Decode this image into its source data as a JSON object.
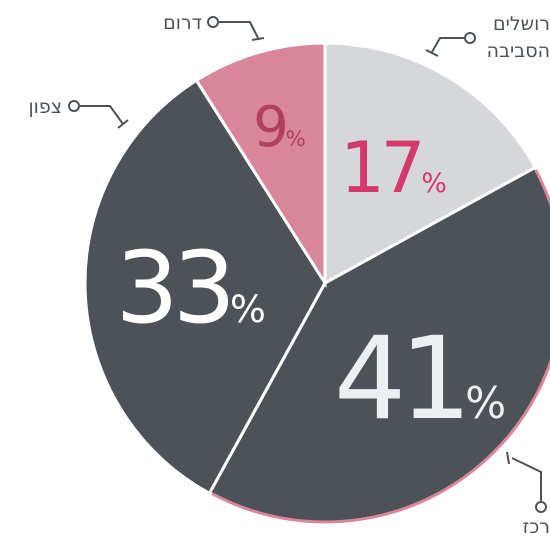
{
  "chart_data": {
    "type": "pie",
    "categories": [
      [
        "רושלים",
        "הסביבה"
      ],
      [
        "רכז"
      ],
      [
        "צפון"
      ],
      [
        "דרום"
      ]
    ],
    "values": [
      17,
      41,
      33,
      9
    ],
    "colors": [
      "#d5d7db",
      "#4c5257",
      "#4c5257",
      "#d9869a"
    ],
    "label_colors": [
      "#d4396b",
      "#eceeef",
      "#ffffff",
      "#b04060"
    ],
    "unit": "%"
  }
}
